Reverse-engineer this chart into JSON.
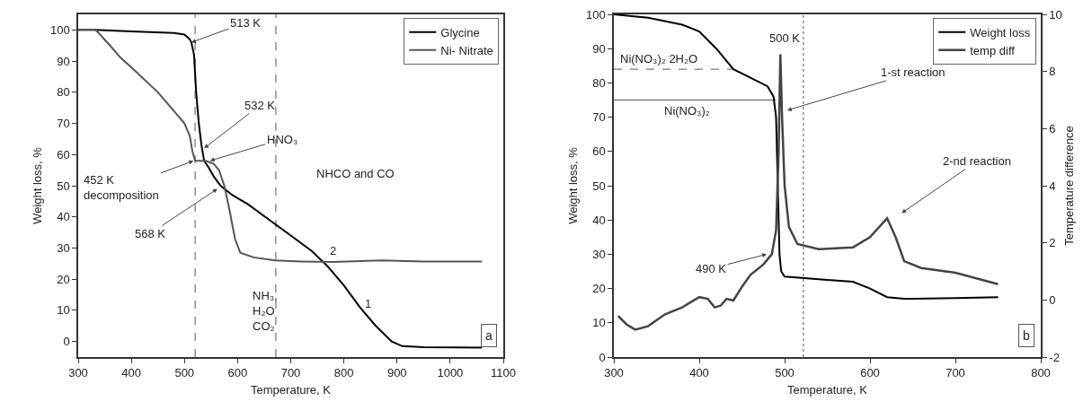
{
  "chart_data": [
    {
      "type": "line",
      "xlabel": "Temperature, K",
      "ylabel": "Weight loss, %",
      "xlim": [
        300,
        1100
      ],
      "xticks": [
        300,
        400,
        500,
        600,
        700,
        800,
        900,
        1000,
        1100
      ],
      "ylim": [
        -5,
        105
      ],
      "yticks": [
        0,
        10,
        20,
        30,
        40,
        50,
        60,
        70,
        80,
        90,
        100
      ],
      "grid": false,
      "legend": "top right",
      "line_style": "solid",
      "series": [
        {
          "name": "Glycine",
          "color": "#000000",
          "x": [
            300,
            330,
            400,
            480,
            500,
            510,
            513,
            518,
            522,
            527,
            532,
            537,
            545,
            555,
            568,
            590,
            620,
            660,
            700,
            740,
            770,
            800,
            830,
            860,
            890,
            910,
            950,
            1060
          ],
          "values": [
            100,
            100,
            99.5,
            99,
            98.5,
            97,
            96,
            92,
            80,
            70,
            63,
            58,
            56,
            53,
            50,
            47,
            44,
            39,
            34,
            29,
            24,
            18,
            11,
            5,
            0,
            -1.5,
            -1.8,
            -2
          ]
        },
        {
          "name": "Ni- Nitrate",
          "color": "#555555",
          "x": [
            300,
            333,
            360,
            380,
            400,
            450,
            480,
            500,
            510,
            515,
            520,
            540,
            555,
            565,
            575,
            585,
            595,
            605,
            630,
            670,
            720,
            780,
            870,
            950,
            1060
          ],
          "values": [
            100,
            100,
            95,
            91,
            88,
            80,
            74,
            70,
            66,
            61,
            58,
            58,
            57,
            55,
            50,
            42,
            33,
            28.5,
            27,
            26,
            25.7,
            25.5,
            26,
            25.7,
            25.7
          ]
        }
      ],
      "ref_lines": [
        {
          "axis": "x",
          "value": 520,
          "line_style": "dashed",
          "color": "#555555"
        },
        {
          "axis": "x",
          "value": 672,
          "line_style": "dashed",
          "color": "#555555"
        }
      ],
      "annotations": [
        {
          "text": "513 K",
          "x": 513,
          "y": 96
        },
        {
          "text": "532 K",
          "x": 537,
          "y": 62
        },
        {
          "text": "HNO₃",
          "x": 548,
          "y": 58
        },
        {
          "text": "452 K\ndecomposition",
          "x": 517,
          "y": 58
        },
        {
          "text": "568 K",
          "x": 562,
          "y": 49
        },
        "NHCO and CO",
        "2",
        "1",
        "NH₃,\nH₂O\nCO₂",
        "a"
      ]
    },
    {
      "type": "line",
      "xlabel": "Temperature, K",
      "ylabel": "Weight loss, %",
      "y2label": "Temperature difference",
      "xlim": [
        300,
        800
      ],
      "xticks": [
        300,
        400,
        500,
        600,
        700,
        800
      ],
      "ylim": [
        0,
        100
      ],
      "yticks": [
        0,
        10,
        20,
        30,
        40,
        50,
        60,
        70,
        80,
        90,
        100
      ],
      "y2lim": [
        -2,
        10
      ],
      "y2ticks": [
        -2,
        0,
        2,
        4,
        6,
        8,
        10
      ],
      "grid": false,
      "legend": "top right",
      "line_style": "solid",
      "series": [
        {
          "name": "Weight loss",
          "color": "#000000",
          "x": [
            300,
            340,
            380,
            400,
            420,
            440,
            460,
            480,
            487,
            490,
            492,
            494,
            496,
            500,
            550,
            580,
            600,
            620,
            640,
            700,
            750
          ],
          "values": [
            100,
            99,
            97,
            95,
            90,
            84,
            81.5,
            79,
            76,
            70,
            50,
            30,
            25,
            23.5,
            22.5,
            22,
            20,
            17.5,
            17,
            17.2,
            17.5
          ]
        },
        {
          "name": "temp diff",
          "color": "#444444",
          "axis": "y2",
          "x": [
            305,
            315,
            325,
            340,
            360,
            380,
            400,
            410,
            418,
            425,
            432,
            440,
            450,
            460,
            475,
            485,
            490,
            493,
            495,
            497,
            500,
            505,
            515,
            540,
            580,
            600,
            620,
            630,
            640,
            660,
            700,
            750
          ],
          "values": [
            -0.56,
            -0.86,
            -1.04,
            -0.92,
            -0.5,
            -0.26,
            0.1,
            0.04,
            -0.26,
            -0.2,
            0.04,
            -0.02,
            0.46,
            0.88,
            1.24,
            1.6,
            2.44,
            5.2,
            8.6,
            6.4,
            4,
            2.56,
            1.96,
            1.78,
            1.84,
            2.2,
            2.86,
            2.2,
            1.36,
            1.12,
            0.95,
            0.55
          ]
        }
      ],
      "ref_lines": [
        {
          "axis": "y",
          "value": 84,
          "label": "Ni(NO₃)₂ 2H₂O",
          "line_style": "dashed",
          "color": "#555555"
        },
        {
          "axis": "y",
          "value": 75,
          "label": "Ni(NO₃)₂",
          "line_style": "solid",
          "color": "#555555"
        },
        {
          "axis": "x",
          "value": 522,
          "line_style": "dotted",
          "color": "#555555"
        }
      ],
      "annotations": [
        "500 K",
        {
          "text": "1-st reaction",
          "x": 503,
          "y": 72
        },
        "2-nd reaction",
        {
          "text": "490 K",
          "x": 479,
          "y": 30
        },
        "b"
      ]
    }
  ]
}
